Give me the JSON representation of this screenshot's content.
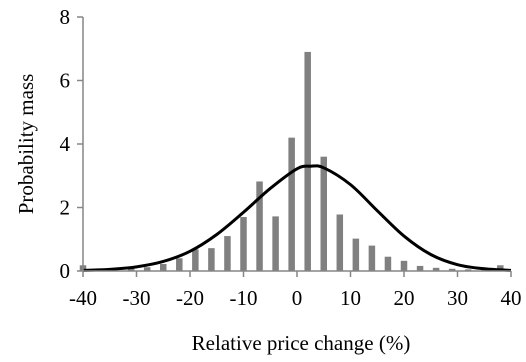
{
  "chart_data": {
    "type": "bar",
    "title": "",
    "xlabel": "Relative price change (%)",
    "ylabel": "Probability mass",
    "xlim": [
      -40,
      40
    ],
    "ylim": [
      0,
      8
    ],
    "xticks": [
      "-40",
      "-30",
      "-20",
      "-10",
      "0",
      "10",
      "20",
      "30",
      "40"
    ],
    "yticks": [
      "0",
      "2",
      "4",
      "6",
      "8"
    ],
    "grid": false,
    "legend": "none",
    "bar_color": "#808080",
    "curve_color": "#000000",
    "bars": {
      "x": [
        -40,
        -37,
        -34,
        -31,
        -28,
        -25,
        -22,
        -19,
        -16,
        -13,
        -10,
        -7,
        -4,
        -1,
        2,
        5,
        8,
        11,
        14,
        17,
        20,
        23,
        26,
        29,
        32,
        35,
        38,
        41
      ],
      "values": [
        0.18,
        0.04,
        0.05,
        0.08,
        0.12,
        0.22,
        0.4,
        0.68,
        0.72,
        1.1,
        1.7,
        2.82,
        1.72,
        4.2,
        6.9,
        3.6,
        1.78,
        1.02,
        0.8,
        0.45,
        0.32,
        0.16,
        0.1,
        0.07,
        0.05,
        0.04,
        0.18,
        0.05
      ]
    },
    "curve": {
      "x": [
        -40,
        -35,
        -30,
        -25,
        -20,
        -15,
        -10,
        -5,
        0,
        2.5,
        5,
        10,
        15,
        20,
        25,
        30,
        35,
        40
      ],
      "values": [
        0.02,
        0.05,
        0.13,
        0.3,
        0.62,
        1.15,
        1.85,
        2.6,
        3.22,
        3.3,
        3.25,
        2.72,
        1.9,
        1.1,
        0.52,
        0.2,
        0.07,
        0.02
      ]
    }
  }
}
